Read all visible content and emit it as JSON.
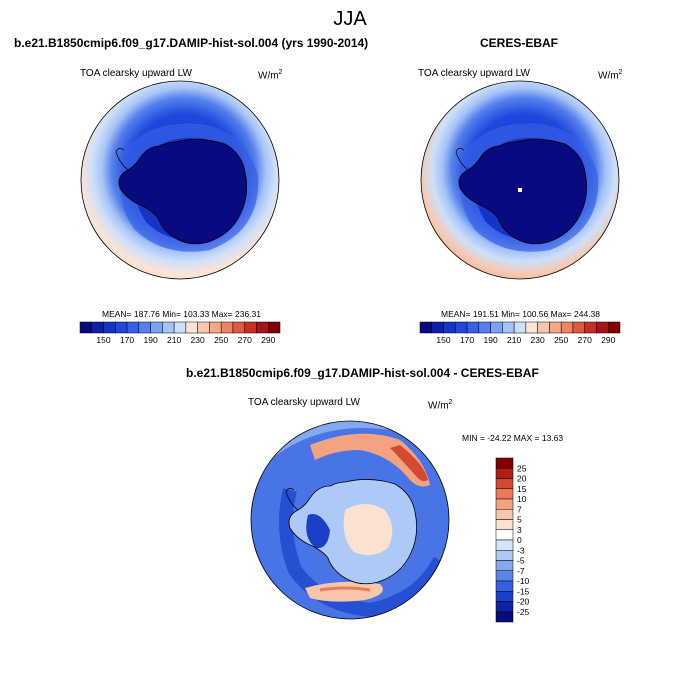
{
  "title": "JJA",
  "panels": [
    {
      "title": "b.e21.B1850cmip6.f09_g17.DAMIP-hist-sol.004 (yrs 1990-2014)",
      "variable": "TOA clearsky upward LW",
      "units_base": "W/m",
      "units_exp": "2",
      "stats": "MEAN= 187.76  Min= 103.33  Max= 236.31"
    },
    {
      "title": "CERES-EBAF",
      "variable": "TOA clearsky upward LW",
      "units_base": "W/m",
      "units_exp": "2",
      "stats": "MEAN= 191.51  Min= 100.56  Max= 244.38"
    },
    {
      "title": "b.e21.B1850cmip6.f09_g17.DAMIP-hist-sol.004 - CERES-EBAF",
      "variable": "TOA clearsky upward LW",
      "units_base": "W/m",
      "units_exp": "2",
      "stats": "MIN = -24.22  MAX =  13.63"
    }
  ],
  "colorbar_abs": {
    "colors": [
      "#0a0a80",
      "#0c1fa8",
      "#1433c8",
      "#2147dc",
      "#3560e6",
      "#5580ec",
      "#7ca2f1",
      "#a5c3f6",
      "#cde0fa",
      "#fbe4d6",
      "#f8c8ae",
      "#f3a784",
      "#ec8461",
      "#de5a40",
      "#c53224",
      "#a51515",
      "#820000"
    ],
    "labels": [
      "150",
      "170",
      "190",
      "210",
      "230",
      "250",
      "270",
      "290"
    ]
  },
  "colorbar_diff": {
    "colors": [
      "#820000",
      "#b01e16",
      "#d44a31",
      "#ea7a5a",
      "#f4a382",
      "#f8c6aa",
      "#fbe1d0",
      "#ffffff",
      "#d5e4fa",
      "#adc9f6",
      "#84a9f1",
      "#5b85ea",
      "#3461e3",
      "#1a40c9",
      "#0e23a3",
      "#070c7c"
    ],
    "labels": [
      "25",
      "20",
      "15",
      "10",
      "7",
      "5",
      "3",
      "0",
      "-3",
      "-5",
      "-7",
      "-10",
      "-15",
      "-20",
      "-25"
    ]
  }
}
